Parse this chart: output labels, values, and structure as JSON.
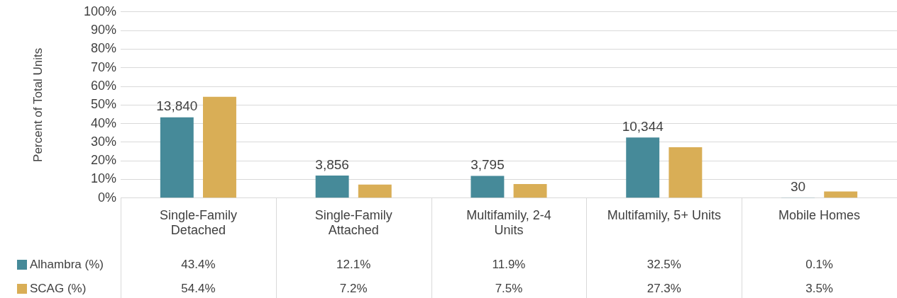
{
  "chart_data": {
    "type": "bar",
    "ylabel": "Percent of Total Units",
    "categories": [
      "Single-Family Detached",
      "Single-Family Attached",
      "Multifamily, 2-4 Units",
      "Multifamily, 5+ Units",
      "Mobile Homes"
    ],
    "series": [
      {
        "name": "Alhambra (%)",
        "color": "#468a99",
        "values": [
          43.4,
          12.1,
          11.9,
          32.5,
          0.1
        ],
        "value_labels": [
          "43.4%",
          "12.1%",
          "11.9%",
          "32.5%",
          "0.1%"
        ]
      },
      {
        "name": "SCAG (%)",
        "color": "#d9ae56",
        "values": [
          54.4,
          7.2,
          7.5,
          27.3,
          3.5
        ],
        "value_labels": [
          "54.4%",
          "7.2%",
          "7.5%",
          "27.3%",
          "3.5%"
        ]
      }
    ],
    "annotations": [
      "13,840",
      "3,856",
      "3,795",
      "10,344",
      "30"
    ],
    "ylim": [
      0,
      100
    ],
    "yticks": [
      {
        "value": 0,
        "label": "0%"
      },
      {
        "value": 10,
        "label": "10%"
      },
      {
        "value": 20,
        "label": "20%"
      },
      {
        "value": 30,
        "label": "30%"
      },
      {
        "value": 40,
        "label": "40%"
      },
      {
        "value": 50,
        "label": "50%"
      },
      {
        "value": 60,
        "label": "60%"
      },
      {
        "value": 70,
        "label": "70%"
      },
      {
        "value": 80,
        "label": "80%"
      },
      {
        "value": 90,
        "label": "90%"
      },
      {
        "value": 100,
        "label": "100%"
      }
    ],
    "grid": "y",
    "legend": "bottom"
  }
}
